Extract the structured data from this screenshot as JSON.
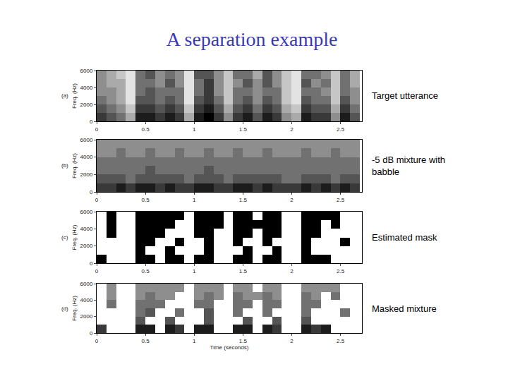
{
  "title": "A separation example",
  "chart_data": [
    {
      "type": "heatmap",
      "label": "(a)",
      "title": "Target utterance",
      "ylabel": "Freq. (Hz)",
      "xlim": [
        0,
        2.72
      ],
      "xticks": [
        0,
        0.5,
        1,
        1.5,
        2,
        2.5
      ],
      "ylim": [
        0,
        6000
      ],
      "yticks": [
        0,
        2000,
        4000,
        6000
      ],
      "zlim": [
        0,
        9
      ],
      "x": [
        0.05,
        0.15,
        0.25,
        0.35,
        0.45,
        0.55,
        0.65,
        0.75,
        0.85,
        0.95,
        1.05,
        1.15,
        1.25,
        1.35,
        1.45,
        1.55,
        1.65,
        1.75,
        1.85,
        1.95,
        2.05,
        2.15,
        2.25,
        2.35,
        2.45,
        2.55,
        2.65
      ],
      "y": [
        500,
        1500,
        2500,
        3500,
        4500,
        5500
      ],
      "z": [
        [
          7,
          6,
          5,
          3,
          8,
          8,
          7,
          8,
          7,
          3,
          8,
          9,
          7,
          4,
          7,
          8,
          6,
          8,
          7,
          4,
          3,
          8,
          7,
          7,
          4,
          8,
          6
        ],
        [
          6,
          5,
          4,
          2,
          7,
          7,
          6,
          7,
          6,
          2,
          7,
          8,
          6,
          3,
          6,
          7,
          5,
          7,
          6,
          3,
          2,
          7,
          6,
          6,
          3,
          7,
          5
        ],
        [
          5,
          4,
          3,
          1,
          6,
          6,
          5,
          6,
          5,
          1,
          6,
          7,
          5,
          2,
          5,
          6,
          4,
          6,
          5,
          2,
          1,
          6,
          5,
          5,
          2,
          6,
          4
        ],
        [
          4,
          4,
          3,
          1,
          5,
          6,
          5,
          5,
          5,
          1,
          5,
          7,
          4,
          2,
          5,
          5,
          4,
          5,
          5,
          2,
          1,
          5,
          5,
          4,
          2,
          5,
          4
        ],
        [
          4,
          3,
          3,
          1,
          5,
          5,
          4,
          6,
          4,
          1,
          5,
          7,
          4,
          2,
          4,
          6,
          4,
          6,
          4,
          2,
          1,
          6,
          4,
          5,
          2,
          5,
          3
        ],
        [
          4,
          3,
          2,
          1,
          5,
          6,
          4,
          5,
          4,
          1,
          6,
          6,
          4,
          2,
          5,
          5,
          3,
          6,
          4,
          2,
          1,
          5,
          5,
          4,
          2,
          5,
          3
        ]
      ]
    },
    {
      "type": "heatmap",
      "label": "(b)",
      "title": [
        "-5 dB mixture with",
        "babble"
      ],
      "ylabel": "Freq. (Hz)",
      "xlim": [
        0,
        2.72
      ],
      "xticks": [
        0,
        0.5,
        1,
        1.5,
        2,
        2.5
      ],
      "ylim": [
        0,
        6000
      ],
      "yticks": [
        0,
        2000,
        4000,
        6000
      ],
      "zlim": [
        0,
        9
      ],
      "x": [
        0.05,
        0.15,
        0.25,
        0.35,
        0.45,
        0.55,
        0.65,
        0.75,
        0.85,
        0.95,
        1.05,
        1.15,
        1.25,
        1.35,
        1.45,
        1.55,
        1.65,
        1.75,
        1.85,
        1.95,
        2.05,
        2.15,
        2.25,
        2.35,
        2.45,
        2.55,
        2.65
      ],
      "y": [
        500,
        1500,
        2500,
        3500,
        4500,
        5500
      ],
      "z": [
        [
          7,
          7,
          8,
          7,
          8,
          8,
          7,
          8,
          7,
          7,
          8,
          8,
          7,
          7,
          8,
          8,
          7,
          8,
          7,
          7,
          7,
          8,
          7,
          8,
          7,
          8,
          7
        ],
        [
          6,
          6,
          6,
          5,
          6,
          6,
          6,
          6,
          6,
          5,
          6,
          6,
          6,
          5,
          6,
          6,
          6,
          6,
          6,
          5,
          5,
          6,
          6,
          6,
          5,
          6,
          6
        ],
        [
          5,
          5,
          5,
          5,
          5,
          6,
          5,
          5,
          5,
          5,
          5,
          6,
          5,
          5,
          5,
          5,
          5,
          5,
          5,
          5,
          5,
          5,
          5,
          5,
          5,
          5,
          5
        ],
        [
          5,
          5,
          5,
          5,
          5,
          5,
          5,
          5,
          5,
          5,
          5,
          5,
          5,
          5,
          5,
          5,
          5,
          5,
          5,
          5,
          5,
          5,
          5,
          5,
          5,
          5,
          5
        ],
        [
          4,
          4,
          5,
          4,
          4,
          5,
          4,
          4,
          5,
          4,
          4,
          5,
          4,
          4,
          5,
          4,
          4,
          5,
          4,
          4,
          4,
          5,
          4,
          4,
          5,
          4,
          4
        ],
        [
          4,
          4,
          4,
          4,
          4,
          4,
          4,
          4,
          4,
          4,
          4,
          4,
          4,
          4,
          4,
          4,
          4,
          4,
          4,
          4,
          4,
          4,
          4,
          4,
          4,
          4,
          4
        ]
      ]
    },
    {
      "type": "heatmap",
      "label": "(c)",
      "title": "Estimated mask",
      "ylabel": "Freq. (Hz)",
      "xlim": [
        0,
        2.72
      ],
      "xticks": [
        0,
        0.5,
        1,
        1.5,
        2,
        2.5
      ],
      "ylim": [
        0,
        6000
      ],
      "yticks": [
        0,
        2000,
        4000,
        6000
      ],
      "zlim": [
        0,
        1
      ],
      "x": [
        0.05,
        0.15,
        0.25,
        0.35,
        0.45,
        0.55,
        0.65,
        0.75,
        0.85,
        0.95,
        1.05,
        1.15,
        1.25,
        1.35,
        1.45,
        1.55,
        1.65,
        1.75,
        1.85,
        1.95,
        2.05,
        2.15,
        2.25,
        2.35,
        2.45,
        2.55,
        2.65
      ],
      "y": [
        500,
        1500,
        2500,
        3500,
        4500,
        5500
      ],
      "z": [
        [
          1,
          0,
          0,
          0,
          1,
          1,
          0,
          1,
          1,
          0,
          1,
          1,
          0,
          0,
          1,
          1,
          0,
          1,
          1,
          0,
          0,
          1,
          1,
          1,
          0,
          0,
          0
        ],
        [
          0,
          0,
          0,
          0,
          1,
          0,
          0,
          1,
          0,
          0,
          0,
          1,
          0,
          0,
          0,
          1,
          0,
          0,
          1,
          0,
          0,
          1,
          0,
          0,
          0,
          0,
          0
        ],
        [
          0,
          0,
          0,
          0,
          1,
          1,
          0,
          0,
          1,
          0,
          0,
          1,
          0,
          0,
          1,
          0,
          0,
          1,
          0,
          0,
          0,
          1,
          0,
          0,
          0,
          1,
          0
        ],
        [
          0,
          1,
          0,
          0,
          1,
          1,
          1,
          0,
          0,
          0,
          1,
          1,
          0,
          0,
          1,
          1,
          0,
          1,
          1,
          0,
          0,
          1,
          1,
          0,
          0,
          0,
          0
        ],
        [
          0,
          1,
          0,
          0,
          1,
          1,
          1,
          1,
          0,
          0,
          1,
          1,
          1,
          0,
          1,
          1,
          1,
          1,
          1,
          0,
          0,
          1,
          1,
          0,
          1,
          0,
          0
        ],
        [
          0,
          1,
          0,
          0,
          1,
          1,
          1,
          1,
          1,
          0,
          1,
          1,
          1,
          0,
          1,
          1,
          0,
          1,
          1,
          0,
          0,
          1,
          1,
          1,
          1,
          0,
          0
        ]
      ]
    },
    {
      "type": "heatmap",
      "label": "(d)",
      "title": "Masked mixture",
      "ylabel": "Freq. (Hz)",
      "xlabel": "Time (seconds)",
      "xlim": [
        0,
        2.72
      ],
      "xticks": [
        0,
        0.5,
        1,
        1.5,
        2,
        2.5
      ],
      "ylim": [
        0,
        6000
      ],
      "yticks": [
        0,
        2000,
        4000,
        6000
      ],
      "zlim": [
        0,
        9
      ],
      "x": [
        0.05,
        0.15,
        0.25,
        0.35,
        0.45,
        0.55,
        0.65,
        0.75,
        0.85,
        0.95,
        1.05,
        1.15,
        1.25,
        1.35,
        1.45,
        1.55,
        1.65,
        1.75,
        1.85,
        1.95,
        2.05,
        2.15,
        2.25,
        2.35,
        2.45,
        2.55,
        2.65
      ],
      "y": [
        500,
        1500,
        2500,
        3500,
        4500,
        5500
      ],
      "z": [
        [
          7,
          0,
          0,
          0,
          8,
          8,
          0,
          8,
          7,
          0,
          8,
          8,
          0,
          0,
          8,
          8,
          0,
          8,
          7,
          0,
          0,
          8,
          7,
          8,
          0,
          0,
          0
        ],
        [
          0,
          0,
          0,
          0,
          6,
          0,
          0,
          6,
          0,
          0,
          0,
          6,
          0,
          0,
          0,
          6,
          0,
          0,
          6,
          0,
          0,
          6,
          0,
          0,
          0,
          0,
          0
        ],
        [
          0,
          0,
          0,
          0,
          5,
          6,
          0,
          0,
          5,
          0,
          0,
          6,
          0,
          0,
          5,
          0,
          0,
          5,
          0,
          0,
          0,
          5,
          0,
          0,
          0,
          5,
          0
        ],
        [
          0,
          5,
          0,
          0,
          5,
          5,
          5,
          0,
          0,
          0,
          5,
          5,
          0,
          0,
          5,
          5,
          0,
          5,
          5,
          0,
          0,
          5,
          5,
          0,
          0,
          0,
          0
        ],
        [
          0,
          4,
          0,
          0,
          4,
          5,
          4,
          4,
          0,
          0,
          4,
          5,
          4,
          0,
          5,
          4,
          4,
          5,
          4,
          0,
          0,
          5,
          4,
          0,
          5,
          0,
          0
        ],
        [
          0,
          4,
          0,
          0,
          4,
          4,
          4,
          4,
          4,
          0,
          4,
          4,
          4,
          0,
          4,
          4,
          0,
          4,
          4,
          0,
          0,
          4,
          4,
          4,
          4,
          0,
          0
        ]
      ]
    }
  ]
}
